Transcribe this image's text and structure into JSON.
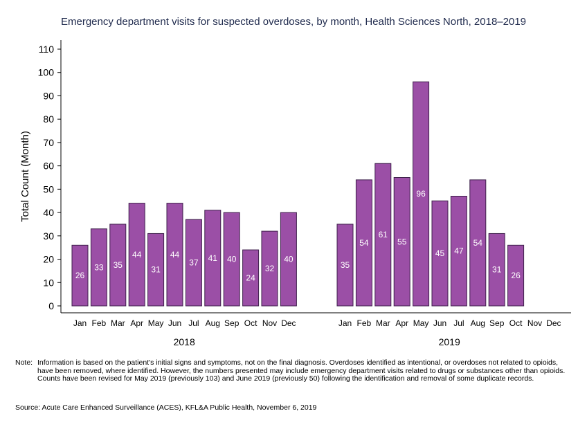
{
  "chart_data": {
    "type": "bar",
    "title": "Emergency department visits for suspected overdoses, by month, Health Sciences North, 2018–2019",
    "xlabel": "",
    "ylabel": "Total Count (Month)",
    "ylim": [
      0,
      110
    ],
    "yticks": [
      0,
      10,
      20,
      30,
      40,
      50,
      60,
      70,
      80,
      90,
      100,
      110
    ],
    "months": [
      "Jan",
      "Feb",
      "Mar",
      "Apr",
      "May",
      "Jun",
      "Jul",
      "Aug",
      "Sep",
      "Oct",
      "Nov",
      "Dec"
    ],
    "groups": [
      {
        "year": "2018",
        "values": [
          26,
          33,
          35,
          44,
          31,
          44,
          37,
          41,
          40,
          24,
          32,
          40
        ]
      },
      {
        "year": "2019",
        "values": [
          35,
          54,
          61,
          55,
          96,
          45,
          47,
          54,
          31,
          26,
          null,
          null
        ]
      }
    ],
    "bar_color": "#9b4fa6"
  },
  "note": {
    "label": "Note:",
    "text": "Information is based on the patient's initial signs and symptoms, not on the final diagnosis. Overdoses identified as intentional, or overdoses not related to opioids, have been removed, where identified. However, the numbers presented may include emergency department visits related to drugs or substances other than opioids. Counts have been revised for May 2019 (previously 103) and June 2019 (previously 50) following the identification and removal of some duplicate records."
  },
  "source": "Source: Acute Care Enhanced Surveillance (ACES), KFL&A Public Health, November 6, 2019"
}
